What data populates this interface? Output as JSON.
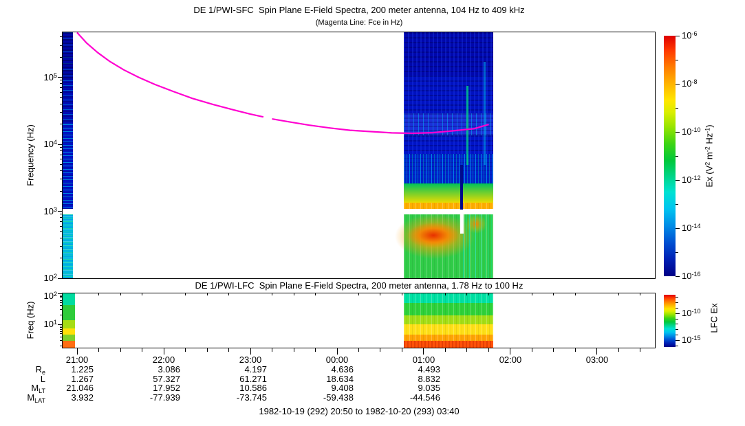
{
  "titles": {
    "sfc_title": "DE 1/PWI-SFC  Spin Plane E-Field Spectra, 200 meter antenna, 104 Hz to 409 kHz",
    "sfc_subtitle": "(Magenta Line: Fce in Hz)",
    "lfc_title": "DE 1/PWI-LFC  Spin Plane E-Field Spectra, 200 meter antenna, 1.78 Hz to 100 Hz"
  },
  "footer": "1982-10-19 (292) 20:50 to 1982-10-20 (293) 03:40",
  "axes": {
    "sfc": {
      "ylabel": "Frequency (Hz)",
      "yticks": [
        {
          "exp": "5",
          "f": 100000
        },
        {
          "exp": "4",
          "f": 10000
        },
        {
          "exp": "3",
          "f": 1000
        },
        {
          "exp": "2",
          "f": 100
        }
      ]
    },
    "lfc": {
      "ylabel": "Freq (Hz)",
      "yticks": [
        {
          "exp": "2",
          "f": 100
        },
        {
          "exp": "1",
          "f": 10
        }
      ]
    },
    "time": {
      "tmin": 20.8333,
      "tmax": 27.6667,
      "minor_step_hours": 0.25,
      "hours": [
        {
          "t": 21,
          "label": "21:00"
        },
        {
          "t": 22,
          "label": "22:00"
        },
        {
          "t": 23,
          "label": "23:00"
        },
        {
          "t": 24,
          "label": "00:00"
        },
        {
          "t": 25,
          "label": "01:00"
        },
        {
          "t": 26,
          "label": "02:00"
        },
        {
          "t": 27,
          "label": "03:00"
        }
      ]
    }
  },
  "colorbars": {
    "sfc": {
      "label_parts": [
        {
          "t": "Ex (V"
        },
        {
          "s": "2"
        },
        {
          "t": " m"
        },
        {
          "s": "-2"
        },
        {
          "t": " Hz"
        },
        {
          "s": "-1"
        },
        {
          "t": ")"
        }
      ],
      "top_exp": -6,
      "bottom_exp": -16,
      "ticks": [
        {
          "exp": "-6",
          "e": -6
        },
        {
          "exp": "-8",
          "e": -8
        },
        {
          "exp": "-10",
          "e": -10
        },
        {
          "exp": "-12",
          "e": -12
        },
        {
          "exp": "-14",
          "e": -14
        },
        {
          "exp": "-16",
          "e": -16
        }
      ],
      "minor_e": [
        -7,
        -9,
        -11,
        -13,
        -15
      ]
    },
    "lfc": {
      "label": "LFC Ex",
      "top_exp": -6.5,
      "bottom_exp": -16.25,
      "ticks": [
        {
          "exp": "-10",
          "e": -10
        },
        {
          "exp": "-15",
          "e": -15
        }
      ],
      "minor_e": [
        -7,
        -8,
        -9,
        -11,
        -12,
        -13,
        -14,
        -16
      ]
    }
  },
  "ephemeris": {
    "row_labels": [
      {
        "base": "R",
        "sub": "e"
      },
      {
        "base": "L",
        "sub": ""
      },
      {
        "base": "M",
        "sub": "LT"
      },
      {
        "base": "M",
        "sub": "LAT"
      }
    ],
    "columns_t": [
      21,
      22,
      23,
      24,
      25
    ],
    "rows": [
      [
        "1.225",
        "3.086",
        "4.197",
        "4.636",
        "4.493"
      ],
      [
        "1.267",
        "57.327",
        "61.271",
        "18.634",
        "8.832"
      ],
      [
        "21.046",
        "17.952",
        "10.586",
        "9.408",
        "9.035"
      ],
      [
        "3.932",
        "-77.939",
        "-73.745",
        "-59.438",
        "-44.546"
      ]
    ]
  },
  "chart_data": [
    {
      "type": "heatmap",
      "title": "DE 1/PWI-SFC  Spin Plane E-Field Spectra, 200 meter antenna, 104 Hz to 409 kHz",
      "xlabel": "UT 1982-10-19 20:50 to 1982-10-20 03:40",
      "ylabel": "Frequency (Hz)",
      "log_y": true,
      "y_range_hz": [
        100,
        470000
      ],
      "colorbar_label": "Ex (V2 m-2 Hz-1)",
      "colorbar_range": [
        "1e-16",
        "1e-6"
      ],
      "segments": [
        {
          "name": "perigee-pass",
          "t": [
            20.8333,
            20.955
          ],
          "layers": [
            {
              "f": [
                90000,
                470000
              ],
              "color": "#0007A8",
              "tex": "rows-dark"
            },
            {
              "f": [
                20000,
                90000
              ],
              "color": "#000CB6",
              "tex": "rows-cyan-sparse"
            },
            {
              "f": [
                1090,
                20000
              ],
              "color": "#0013C4",
              "tex": "rows-cyan"
            },
            {
              "f": [
                890,
                1090
              ],
              "color": "#FFFFFF"
            },
            {
              "f": [
                100,
                890
              ],
              "color": "#00B8E0",
              "tex": "rows-green"
            }
          ],
          "features": []
        },
        {
          "name": "outbound-pass",
          "t": [
            24.7706,
            25.8
          ],
          "layers": [
            {
              "f": [
                105000,
                470000
              ],
              "color": "#0007AC",
              "tex": "grid-subtle"
            },
            {
              "f": [
                29000,
                105000
              ],
              "color": "#0011C0",
              "tex": "grid-subtle"
            },
            {
              "f": [
                13500,
                29000
              ],
              "color": "#1B30D8",
              "tex": "cyan-sparse"
            },
            {
              "f": [
                7200,
                13500
              ],
              "color": "#0013C6",
              "tex": "grid-subtle"
            },
            {
              "f": [
                2600,
                7200
              ],
              "color": "#0022CA",
              "tex": "cyan-heavy"
            },
            {
              "f": [
                1350,
                2600
              ],
              "grad": [
                "#00C25A",
                "#E8DC00"
              ],
              "tex": "v-light"
            },
            {
              "f": [
                1090,
                1350
              ],
              "color": "#FFAE00",
              "tex": "v-light"
            },
            {
              "f": [
                890,
                1090
              ],
              "color": "#FFFFFF"
            },
            {
              "f": [
                100,
                890
              ],
              "color": "#30CC48",
              "tex": "v-light"
            }
          ],
          "features": [
            {
              "kind": "ellipse",
              "t": 25.127,
              "f": 420,
              "dt": 0.46,
              "ddec": 0.34,
              "colors": [
                "rgba(255,200,0,0.95)",
                "rgba(255,160,0,0.55)",
                "rgba(255,200,0,0)"
              ]
            },
            {
              "kind": "ellipse",
              "t": 25.111,
              "f": 434,
              "dt": 0.3,
              "ddec": 0.19,
              "colors": [
                "rgba(230,40,0,0.95)",
                "rgba(255,120,0,0.75)",
                "rgba(255,150,0,0)"
              ]
            },
            {
              "kind": "ellipse",
              "t": 25.603,
              "f": 646,
              "dt": 0.125,
              "ddec": 0.14,
              "colors": [
                "rgba(255,130,0,0.9)",
                "rgba(255,170,0,0.4)",
                "rgba(255,170,0,0)"
              ]
            },
            {
              "kind": "tex-rect",
              "t": [
                25.45,
                25.8
              ],
              "f": [
                100,
                890
              ],
              "tex": "cyan-streaks-green"
            },
            {
              "kind": "rect",
              "t": [
                25.42,
                25.452
              ],
              "f": [
                1062,
                4900
              ],
              "color": "#000A8C"
            },
            {
              "kind": "rect",
              "t": [
                25.42,
                25.46
              ],
              "f": [
                464,
                1062
              ],
              "color": "#FFFFFF"
            },
            {
              "kind": "rect",
              "t": [
                25.49,
                25.515
              ],
              "f": [
                4900,
                74000
              ],
              "color": "rgba(0,220,130,0.75)"
            },
            {
              "kind": "rect",
              "t": [
                25.69,
                25.713
              ],
              "f": [
                4900,
                170000
              ],
              "color": "rgba(0,190,245,0.5)"
            }
          ]
        }
      ],
      "fce_line": {
        "color": "#FF00D0",
        "segments": [
          [
            [
              21.0,
              467000
            ],
            [
              21.11,
              325000
            ],
            [
              21.24,
              233000
            ],
            [
              21.38,
              172000
            ],
            [
              21.54,
              129000
            ],
            [
              21.71,
              100000
            ],
            [
              21.9,
              78000
            ],
            [
              22.11,
              61500
            ],
            [
              22.33,
              48500
            ],
            [
              22.57,
              39300
            ],
            [
              22.81,
              32500
            ],
            [
              23.0,
              28200
            ],
            [
              23.15,
              25600
            ]
          ],
          [
            [
              23.25,
              23900
            ],
            [
              23.44,
              21700
            ],
            [
              23.68,
              19300
            ],
            [
              23.92,
              17500
            ],
            [
              24.15,
              16200
            ],
            [
              24.39,
              15500
            ],
            [
              24.63,
              14800
            ],
            [
              24.87,
              14600
            ],
            [
              25.1,
              14900
            ],
            [
              25.34,
              15900
            ],
            [
              25.58,
              17100
            ],
            [
              25.75,
              19800
            ]
          ]
        ]
      }
    },
    {
      "type": "heatmap",
      "title": "DE 1/PWI-LFC  Spin Plane E-Field Spectra, 200 meter antenna, 1.78 Hz to 100 Hz",
      "ylabel": "Freq (Hz)",
      "log_y": true,
      "y_range_hz": [
        1.78,
        100
      ],
      "colorbar_label": "LFC Ex",
      "segments": [
        {
          "name": "perigee-pass",
          "t": [
            20.8333,
            20.975
          ],
          "layers": [
            {
              "f": [
                42,
                100
              ],
              "color": "#00DCA0"
            },
            {
              "f": [
                14,
                42
              ],
              "color": "#2ECC3A"
            },
            {
              "f": [
                7.5,
                14
              ],
              "color": "#A6DC14"
            },
            {
              "f": [
                4.6,
                7.5
              ],
              "color": "#FFE008"
            },
            {
              "f": [
                3.0,
                4.6
              ],
              "color": "#7ED02A"
            },
            {
              "f": [
                1.78,
                3.0
              ],
              "color": "#FF6E12"
            }
          ],
          "features": []
        },
        {
          "name": "outbound-pass",
          "t": [
            24.7706,
            25.8
          ],
          "layers": [
            {
              "f": [
                48,
                100
              ],
              "color": "#00E2A4",
              "tex": "v-light"
            },
            {
              "f": [
                20,
                48
              ],
              "color": "#2ED23A",
              "tex": "v-light"
            },
            {
              "f": [
                10,
                20
              ],
              "color": "#A4DE16",
              "tex": "v-light"
            },
            {
              "f": [
                4.8,
                10
              ],
              "color": "#FFE018",
              "tex": "v-light"
            },
            {
              "f": [
                2.9,
                4.8
              ],
              "color": "#FFA404",
              "tex": "v-light"
            },
            {
              "f": [
                1.78,
                2.9
              ],
              "color": "#FF5208",
              "tex": "v-dark"
            }
          ],
          "features": []
        }
      ]
    }
  ]
}
